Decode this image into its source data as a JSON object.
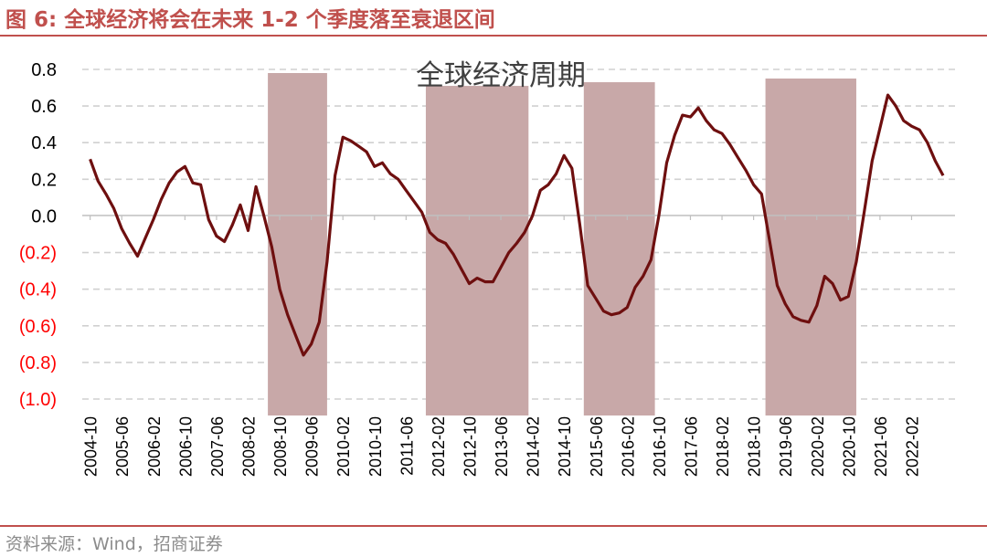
{
  "figure_title": "图 6:  全球经济将会在未来 1-2 个季度落至衰退区间",
  "source": "资料来源：Wind，招商证券",
  "chart_data": {
    "type": "line",
    "title": "全球经济周期",
    "ylim": [
      -1.0,
      0.8
    ],
    "yticks": [
      0.8,
      0.6,
      0.4,
      0.2,
      0.0,
      -0.2,
      -0.4,
      -0.6,
      -0.8,
      -1.0
    ],
    "ytick_labels": [
      "0.8",
      "0.6",
      "0.4",
      "0.2",
      "0.0",
      "(0.2)",
      "(0.4)",
      "(0.6)",
      "(0.8)",
      "(1.0)"
    ],
    "xlim": [
      "2004-10",
      "2023-01"
    ],
    "xtick_labels": [
      "2004-10",
      "2005-06",
      "2006-02",
      "2006-10",
      "2007-06",
      "2008-02",
      "2008-10",
      "2009-06",
      "2010-02",
      "2010-10",
      "2011-06",
      "2012-02",
      "2012-10",
      "2013-06",
      "2014-02",
      "2014-10",
      "2015-06",
      "2016-02",
      "2016-10",
      "2017-06",
      "2018-02",
      "2018-10",
      "2019-06",
      "2020-02",
      "2020-10",
      "2021-06",
      "2022-02"
    ],
    "grid": true,
    "colors": {
      "line": "#6e0f0f",
      "band": "#c8a8a8",
      "negative_labels": "#ff0000",
      "accent": "#c0504d"
    },
    "shaded_periods": [
      {
        "start": "2008-07",
        "end": "2009-10",
        "top": 0.78
      },
      {
        "start": "2011-11",
        "end": "2014-01",
        "top": 0.71
      },
      {
        "start": "2015-03",
        "end": "2016-09",
        "top": 0.73
      },
      {
        "start": "2019-01",
        "end": "2020-12",
        "top": 0.75
      }
    ],
    "series": [
      {
        "points": [
          [
            "2004-10",
            0.31
          ],
          [
            "2004-12",
            0.19
          ],
          [
            "2005-02",
            0.12
          ],
          [
            "2005-04",
            0.04
          ],
          [
            "2005-06",
            -0.07
          ],
          [
            "2005-08",
            -0.15
          ],
          [
            "2005-10",
            -0.22
          ],
          [
            "2005-12",
            -0.12
          ],
          [
            "2006-02",
            -0.02
          ],
          [
            "2006-04",
            0.09
          ],
          [
            "2006-06",
            0.18
          ],
          [
            "2006-08",
            0.24
          ],
          [
            "2006-10",
            0.27
          ],
          [
            "2006-12",
            0.18
          ],
          [
            "2007-02",
            0.17
          ],
          [
            "2007-04",
            -0.02
          ],
          [
            "2007-06",
            -0.11
          ],
          [
            "2007-08",
            -0.14
          ],
          [
            "2007-10",
            -0.05
          ],
          [
            "2007-12",
            0.06
          ],
          [
            "2008-02",
            -0.08
          ],
          [
            "2008-04",
            0.16
          ],
          [
            "2008-06",
            0.0
          ],
          [
            "2008-08",
            -0.17
          ],
          [
            "2008-10",
            -0.4
          ],
          [
            "2008-12",
            -0.54
          ],
          [
            "2009-02",
            -0.65
          ],
          [
            "2009-04",
            -0.76
          ],
          [
            "2009-06",
            -0.7
          ],
          [
            "2009-08",
            -0.58
          ],
          [
            "2009-10",
            -0.25
          ],
          [
            "2009-12",
            0.22
          ],
          [
            "2010-02",
            0.43
          ],
          [
            "2010-04",
            0.41
          ],
          [
            "2010-06",
            0.38
          ],
          [
            "2010-08",
            0.35
          ],
          [
            "2010-10",
            0.27
          ],
          [
            "2010-12",
            0.29
          ],
          [
            "2011-02",
            0.23
          ],
          [
            "2011-04",
            0.2
          ],
          [
            "2011-06",
            0.14
          ],
          [
            "2011-08",
            0.08
          ],
          [
            "2011-10",
            0.02
          ],
          [
            "2011-12",
            -0.09
          ],
          [
            "2012-02",
            -0.13
          ],
          [
            "2012-04",
            -0.15
          ],
          [
            "2012-06",
            -0.21
          ],
          [
            "2012-08",
            -0.29
          ],
          [
            "2012-10",
            -0.37
          ],
          [
            "2012-12",
            -0.34
          ],
          [
            "2013-02",
            -0.36
          ],
          [
            "2013-04",
            -0.36
          ],
          [
            "2013-06",
            -0.28
          ],
          [
            "2013-08",
            -0.2
          ],
          [
            "2013-10",
            -0.15
          ],
          [
            "2013-12",
            -0.09
          ],
          [
            "2014-02",
            0.0
          ],
          [
            "2014-04",
            0.14
          ],
          [
            "2014-06",
            0.17
          ],
          [
            "2014-08",
            0.23
          ],
          [
            "2014-10",
            0.33
          ],
          [
            "2014-12",
            0.26
          ],
          [
            "2015-02",
            -0.05
          ],
          [
            "2015-04",
            -0.38
          ],
          [
            "2015-06",
            -0.45
          ],
          [
            "2015-08",
            -0.52
          ],
          [
            "2015-10",
            -0.54
          ],
          [
            "2015-12",
            -0.53
          ],
          [
            "2016-02",
            -0.5
          ],
          [
            "2016-04",
            -0.39
          ],
          [
            "2016-06",
            -0.33
          ],
          [
            "2016-08",
            -0.24
          ],
          [
            "2016-10",
            0.0
          ],
          [
            "2016-12",
            0.29
          ],
          [
            "2017-02",
            0.44
          ],
          [
            "2017-04",
            0.55
          ],
          [
            "2017-06",
            0.54
          ],
          [
            "2017-08",
            0.59
          ],
          [
            "2017-10",
            0.52
          ],
          [
            "2017-12",
            0.47
          ],
          [
            "2018-02",
            0.45
          ],
          [
            "2018-04",
            0.39
          ],
          [
            "2018-06",
            0.32
          ],
          [
            "2018-08",
            0.25
          ],
          [
            "2018-10",
            0.17
          ],
          [
            "2018-12",
            0.12
          ],
          [
            "2019-02",
            -0.13
          ],
          [
            "2019-04",
            -0.38
          ],
          [
            "2019-06",
            -0.48
          ],
          [
            "2019-08",
            -0.55
          ],
          [
            "2019-10",
            -0.57
          ],
          [
            "2019-12",
            -0.58
          ],
          [
            "2020-02",
            -0.49
          ],
          [
            "2020-04",
            -0.33
          ],
          [
            "2020-06",
            -0.37
          ],
          [
            "2020-08",
            -0.46
          ],
          [
            "2020-10",
            -0.44
          ],
          [
            "2020-12",
            -0.25
          ],
          [
            "2021-02",
            0.02
          ],
          [
            "2021-04",
            0.3
          ],
          [
            "2021-06",
            0.48
          ],
          [
            "2021-08",
            0.66
          ],
          [
            "2021-10",
            0.6
          ],
          [
            "2021-12",
            0.52
          ],
          [
            "2022-02",
            0.49
          ],
          [
            "2022-04",
            0.47
          ],
          [
            "2022-06",
            0.4
          ],
          [
            "2022-08",
            0.3
          ],
          [
            "2022-10",
            0.22
          ]
        ]
      }
    ]
  }
}
